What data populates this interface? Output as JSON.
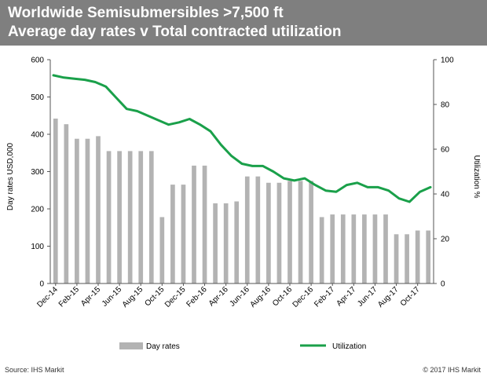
{
  "header": {
    "title_line1": "Worldwide Semisubmersibles >7,500 ft",
    "title_line2": "Average day rates v Total contracted utilization"
  },
  "footer": {
    "source": "Source: IHS Markit",
    "copyright": "© 2017 IHS Markit"
  },
  "colors": {
    "bars": "#b3b3b3",
    "line": "#1aa04a",
    "header_bg": "#7f7f7f"
  },
  "chart_data": {
    "type": "bar",
    "secondary_type": "line",
    "y_left": {
      "label": "Day rates USD,000",
      "range": [
        0,
        600
      ],
      "ticks": [
        "0",
        "100",
        "200",
        "300",
        "400",
        "500",
        "600"
      ]
    },
    "y_right": {
      "label": "Utilization %",
      "range": [
        0,
        100
      ],
      "ticks": [
        "0",
        "20",
        "40",
        "60",
        "80",
        "100"
      ]
    },
    "x_tick_labels": [
      "Dec-14",
      "Feb-15",
      "Apr-15",
      "Jun-15",
      "Aug-15",
      "Oct-15",
      "Dec-15",
      "Feb-16",
      "Apr-16",
      "Jun-16",
      "Aug-16",
      "Oct-16",
      "Dec-16",
      "Feb-17",
      "Apr-17",
      "Jun-17",
      "Aug-17",
      "Oct-17"
    ],
    "grid": false,
    "legend_position": "bottom",
    "series": [
      {
        "name": "Day rates",
        "type": "bar",
        "axis": "left",
        "values": [
          442,
          427,
          388,
          388,
          395,
          355,
          355,
          355,
          355,
          355,
          178,
          265,
          265,
          316,
          316,
          215,
          215,
          220,
          287,
          287,
          270,
          270,
          275,
          275,
          275,
          178,
          185,
          185,
          185,
          185,
          185,
          185,
          132,
          132,
          142,
          142
        ]
      },
      {
        "name": "Utilization",
        "type": "line",
        "axis": "right",
        "values": [
          93,
          92,
          91.5,
          91,
          90,
          88,
          83,
          78,
          77,
          75,
          73,
          71,
          72,
          73.5,
          71,
          68,
          62,
          57,
          53.5,
          52.5,
          52.5,
          50,
          47,
          46,
          47,
          44,
          41.5,
          41,
          44,
          45,
          43,
          43,
          41.5,
          38,
          36.5,
          41,
          43
        ]
      }
    ]
  }
}
